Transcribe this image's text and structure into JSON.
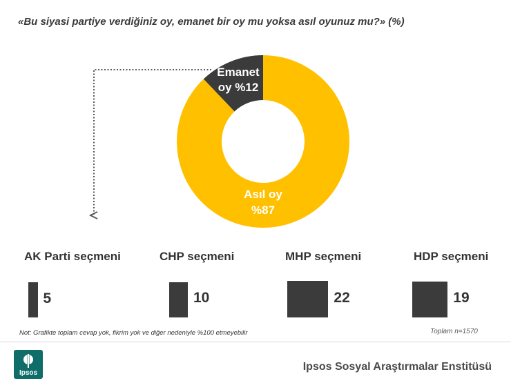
{
  "title": "«Bu siyasi partiye verdiğiniz oy, emanet bir oy mu yoksa asıl oyunuz mu?» (%)",
  "chart_data": [
    {
      "type": "pie",
      "slices": [
        {
          "label_line1": "Emanet",
          "label_line2": "oy %12",
          "value": 12,
          "color": "#3b3b3b"
        },
        {
          "label_line1": "Asıl oy",
          "label_line2": "%87",
          "value": 87,
          "color": "#ffc000"
        }
      ]
    },
    {
      "type": "bar",
      "categories": [
        "AK Parti seçmeni",
        "CHP seçmeni",
        "MHP seçmeni",
        "HDP seçmeni"
      ],
      "values": [
        5,
        10,
        22,
        19
      ],
      "color": "#3b3b3b"
    }
  ],
  "note": "Not: Grafikte toplam cevap yok, fikrim yok ve diğer nedeniyle %100 etmeyebilir",
  "total": "Toplam n=1570",
  "logo": {
    "text": "Ipsos",
    "color": "#0f6e6a"
  },
  "footer": "Ipsos Sosyal Araştırmalar Enstitüsü"
}
